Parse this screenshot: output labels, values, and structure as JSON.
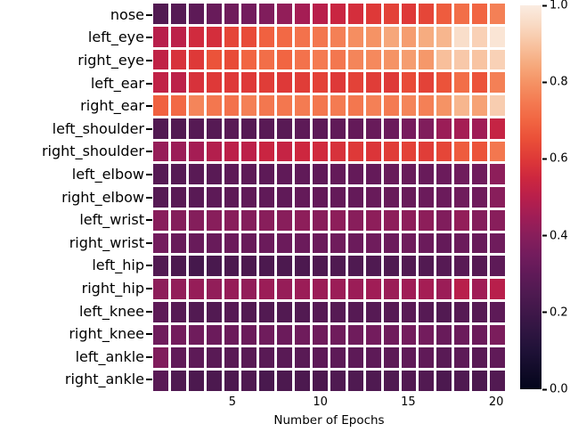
{
  "chart_data": {
    "type": "heatmap",
    "title": "",
    "xlabel": "Number of Epochs",
    "ylabel": "",
    "n_cols": 20,
    "x_range": [
      1,
      20
    ],
    "x_ticks": [
      {
        "pos": 5,
        "label": "5"
      },
      {
        "pos": 10,
        "label": "10"
      },
      {
        "pos": 15,
        "label": "15"
      },
      {
        "pos": 20,
        "label": "20"
      }
    ],
    "categories": [
      "nose",
      "left_eye",
      "right_eye",
      "left_ear",
      "right_ear",
      "left_shoulder",
      "right_shoulder",
      "left_elbow",
      "right_elbow",
      "left_wrist",
      "right_wrist",
      "left_hip",
      "right_hip",
      "left_knee",
      "right_knee",
      "left_ankle",
      "right_ankle"
    ],
    "grid": "white 3px cell separators",
    "legend_position": "right colorbar",
    "colorbar": {
      "min": 0.0,
      "max": 1.0,
      "tick_labels": [
        "1.0",
        "0.8",
        "0.6",
        "0.4",
        "0.2",
        "0.0"
      ],
      "colormap": "rocket"
    },
    "series": [
      {
        "name": "nose",
        "values": [
          0.26,
          0.27,
          0.29,
          0.32,
          0.34,
          0.35,
          0.38,
          0.42,
          0.46,
          0.5,
          0.54,
          0.57,
          0.6,
          0.62,
          0.6,
          0.63,
          0.68,
          0.72,
          0.7,
          0.76
        ]
      },
      {
        "name": "left_eye",
        "values": [
          0.5,
          0.51,
          0.56,
          0.57,
          0.63,
          0.64,
          0.69,
          0.71,
          0.73,
          0.74,
          0.76,
          0.79,
          0.8,
          0.84,
          0.82,
          0.85,
          0.87,
          0.96,
          0.93,
          0.98
        ]
      },
      {
        "name": "right_eye",
        "values": [
          0.52,
          0.58,
          0.6,
          0.66,
          0.64,
          0.7,
          0.72,
          0.7,
          0.73,
          0.75,
          0.74,
          0.77,
          0.78,
          0.8,
          0.82,
          0.81,
          0.89,
          0.91,
          0.9,
          0.93
        ]
      },
      {
        "name": "left_ear",
        "values": [
          0.52,
          0.51,
          0.58,
          0.6,
          0.6,
          0.6,
          0.61,
          0.6,
          0.61,
          0.62,
          0.6,
          0.62,
          0.61,
          0.6,
          0.64,
          0.62,
          0.66,
          0.72,
          0.66,
          0.76
        ]
      },
      {
        "name": "right_ear",
        "values": [
          0.69,
          0.71,
          0.77,
          0.74,
          0.73,
          0.76,
          0.74,
          0.74,
          0.75,
          0.74,
          0.75,
          0.74,
          0.76,
          0.75,
          0.77,
          0.76,
          0.8,
          0.87,
          0.83,
          0.92
        ]
      },
      {
        "name": "left_shoulder",
        "values": [
          0.26,
          0.26,
          0.27,
          0.27,
          0.28,
          0.27,
          0.28,
          0.28,
          0.29,
          0.29,
          0.3,
          0.31,
          0.32,
          0.33,
          0.36,
          0.38,
          0.44,
          0.46,
          0.45,
          0.53
        ]
      },
      {
        "name": "right_shoulder",
        "values": [
          0.43,
          0.44,
          0.46,
          0.49,
          0.51,
          0.51,
          0.54,
          0.53,
          0.55,
          0.56,
          0.58,
          0.6,
          0.59,
          0.61,
          0.62,
          0.61,
          0.63,
          0.68,
          0.66,
          0.74
        ]
      },
      {
        "name": "left_elbow",
        "values": [
          0.27,
          0.27,
          0.28,
          0.28,
          0.29,
          0.29,
          0.29,
          0.3,
          0.3,
          0.3,
          0.31,
          0.31,
          0.31,
          0.32,
          0.32,
          0.32,
          0.33,
          0.34,
          0.34,
          0.41
        ]
      },
      {
        "name": "right_elbow",
        "values": [
          0.27,
          0.28,
          0.28,
          0.29,
          0.29,
          0.3,
          0.3,
          0.3,
          0.31,
          0.31,
          0.31,
          0.31,
          0.32,
          0.32,
          0.32,
          0.33,
          0.33,
          0.34,
          0.34,
          0.4
        ]
      },
      {
        "name": "left_wrist",
        "values": [
          0.4,
          0.39,
          0.39,
          0.4,
          0.4,
          0.39,
          0.4,
          0.4,
          0.41,
          0.4,
          0.41,
          0.4,
          0.41,
          0.41,
          0.41,
          0.41,
          0.38,
          0.42,
          0.39,
          0.4
        ]
      },
      {
        "name": "right_wrist",
        "values": [
          0.35,
          0.32,
          0.32,
          0.32,
          0.33,
          0.32,
          0.33,
          0.33,
          0.33,
          0.33,
          0.34,
          0.33,
          0.34,
          0.33,
          0.34,
          0.33,
          0.31,
          0.33,
          0.32,
          0.34
        ]
      },
      {
        "name": "left_hip",
        "values": [
          0.26,
          0.24,
          0.22,
          0.23,
          0.24,
          0.24,
          0.24,
          0.24,
          0.24,
          0.25,
          0.25,
          0.25,
          0.25,
          0.25,
          0.26,
          0.26,
          0.27,
          0.28,
          0.27,
          0.29
        ]
      },
      {
        "name": "right_hip",
        "values": [
          0.41,
          0.42,
          0.43,
          0.42,
          0.43,
          0.42,
          0.44,
          0.43,
          0.44,
          0.44,
          0.44,
          0.44,
          0.45,
          0.44,
          0.45,
          0.46,
          0.44,
          0.5,
          0.45,
          0.5
        ]
      },
      {
        "name": "left_knee",
        "values": [
          0.29,
          0.27,
          0.26,
          0.26,
          0.27,
          0.26,
          0.26,
          0.26,
          0.26,
          0.27,
          0.27,
          0.27,
          0.27,
          0.27,
          0.28,
          0.27,
          0.26,
          0.27,
          0.27,
          0.29
        ]
      },
      {
        "name": "right_knee",
        "values": [
          0.34,
          0.35,
          0.34,
          0.33,
          0.33,
          0.33,
          0.34,
          0.33,
          0.34,
          0.34,
          0.34,
          0.34,
          0.35,
          0.34,
          0.35,
          0.35,
          0.32,
          0.33,
          0.33,
          0.37
        ]
      },
      {
        "name": "left_ankle",
        "values": [
          0.38,
          0.3,
          0.29,
          0.28,
          0.28,
          0.28,
          0.28,
          0.28,
          0.28,
          0.29,
          0.29,
          0.29,
          0.29,
          0.29,
          0.3,
          0.3,
          0.28,
          0.29,
          0.28,
          0.3
        ]
      },
      {
        "name": "right_ankle",
        "values": [
          0.28,
          0.25,
          0.24,
          0.24,
          0.24,
          0.25,
          0.23,
          0.24,
          0.24,
          0.24,
          0.25,
          0.25,
          0.25,
          0.25,
          0.26,
          0.26,
          0.24,
          0.25,
          0.24,
          0.26
        ]
      }
    ]
  },
  "colors": {
    "background": "#ffffff",
    "text": "#000000",
    "grid_line": "#ffffff",
    "rocket_stops": [
      [
        0.0,
        "#03051A"
      ],
      [
        0.1,
        "#1F1137"
      ],
      [
        0.15,
        "#2F1541"
      ],
      [
        0.2,
        "#3F1749"
      ],
      [
        0.25,
        "#4F1A51"
      ],
      [
        0.3,
        "#601A58"
      ],
      [
        0.35,
        "#731C5D"
      ],
      [
        0.4,
        "#881E5B"
      ],
      [
        0.45,
        "#A01D56"
      ],
      [
        0.5,
        "#B81F4B"
      ],
      [
        0.55,
        "#CD273F"
      ],
      [
        0.6,
        "#DE3938"
      ],
      [
        0.65,
        "#EA4F38"
      ],
      [
        0.7,
        "#F16542"
      ],
      [
        0.75,
        "#F47B52"
      ],
      [
        0.8,
        "#F59365"
      ],
      [
        0.85,
        "#F6AC80"
      ],
      [
        0.9,
        "#F8C4A2"
      ],
      [
        0.95,
        "#F9DAC4"
      ],
      [
        1.0,
        "#FAECE1"
      ]
    ]
  }
}
